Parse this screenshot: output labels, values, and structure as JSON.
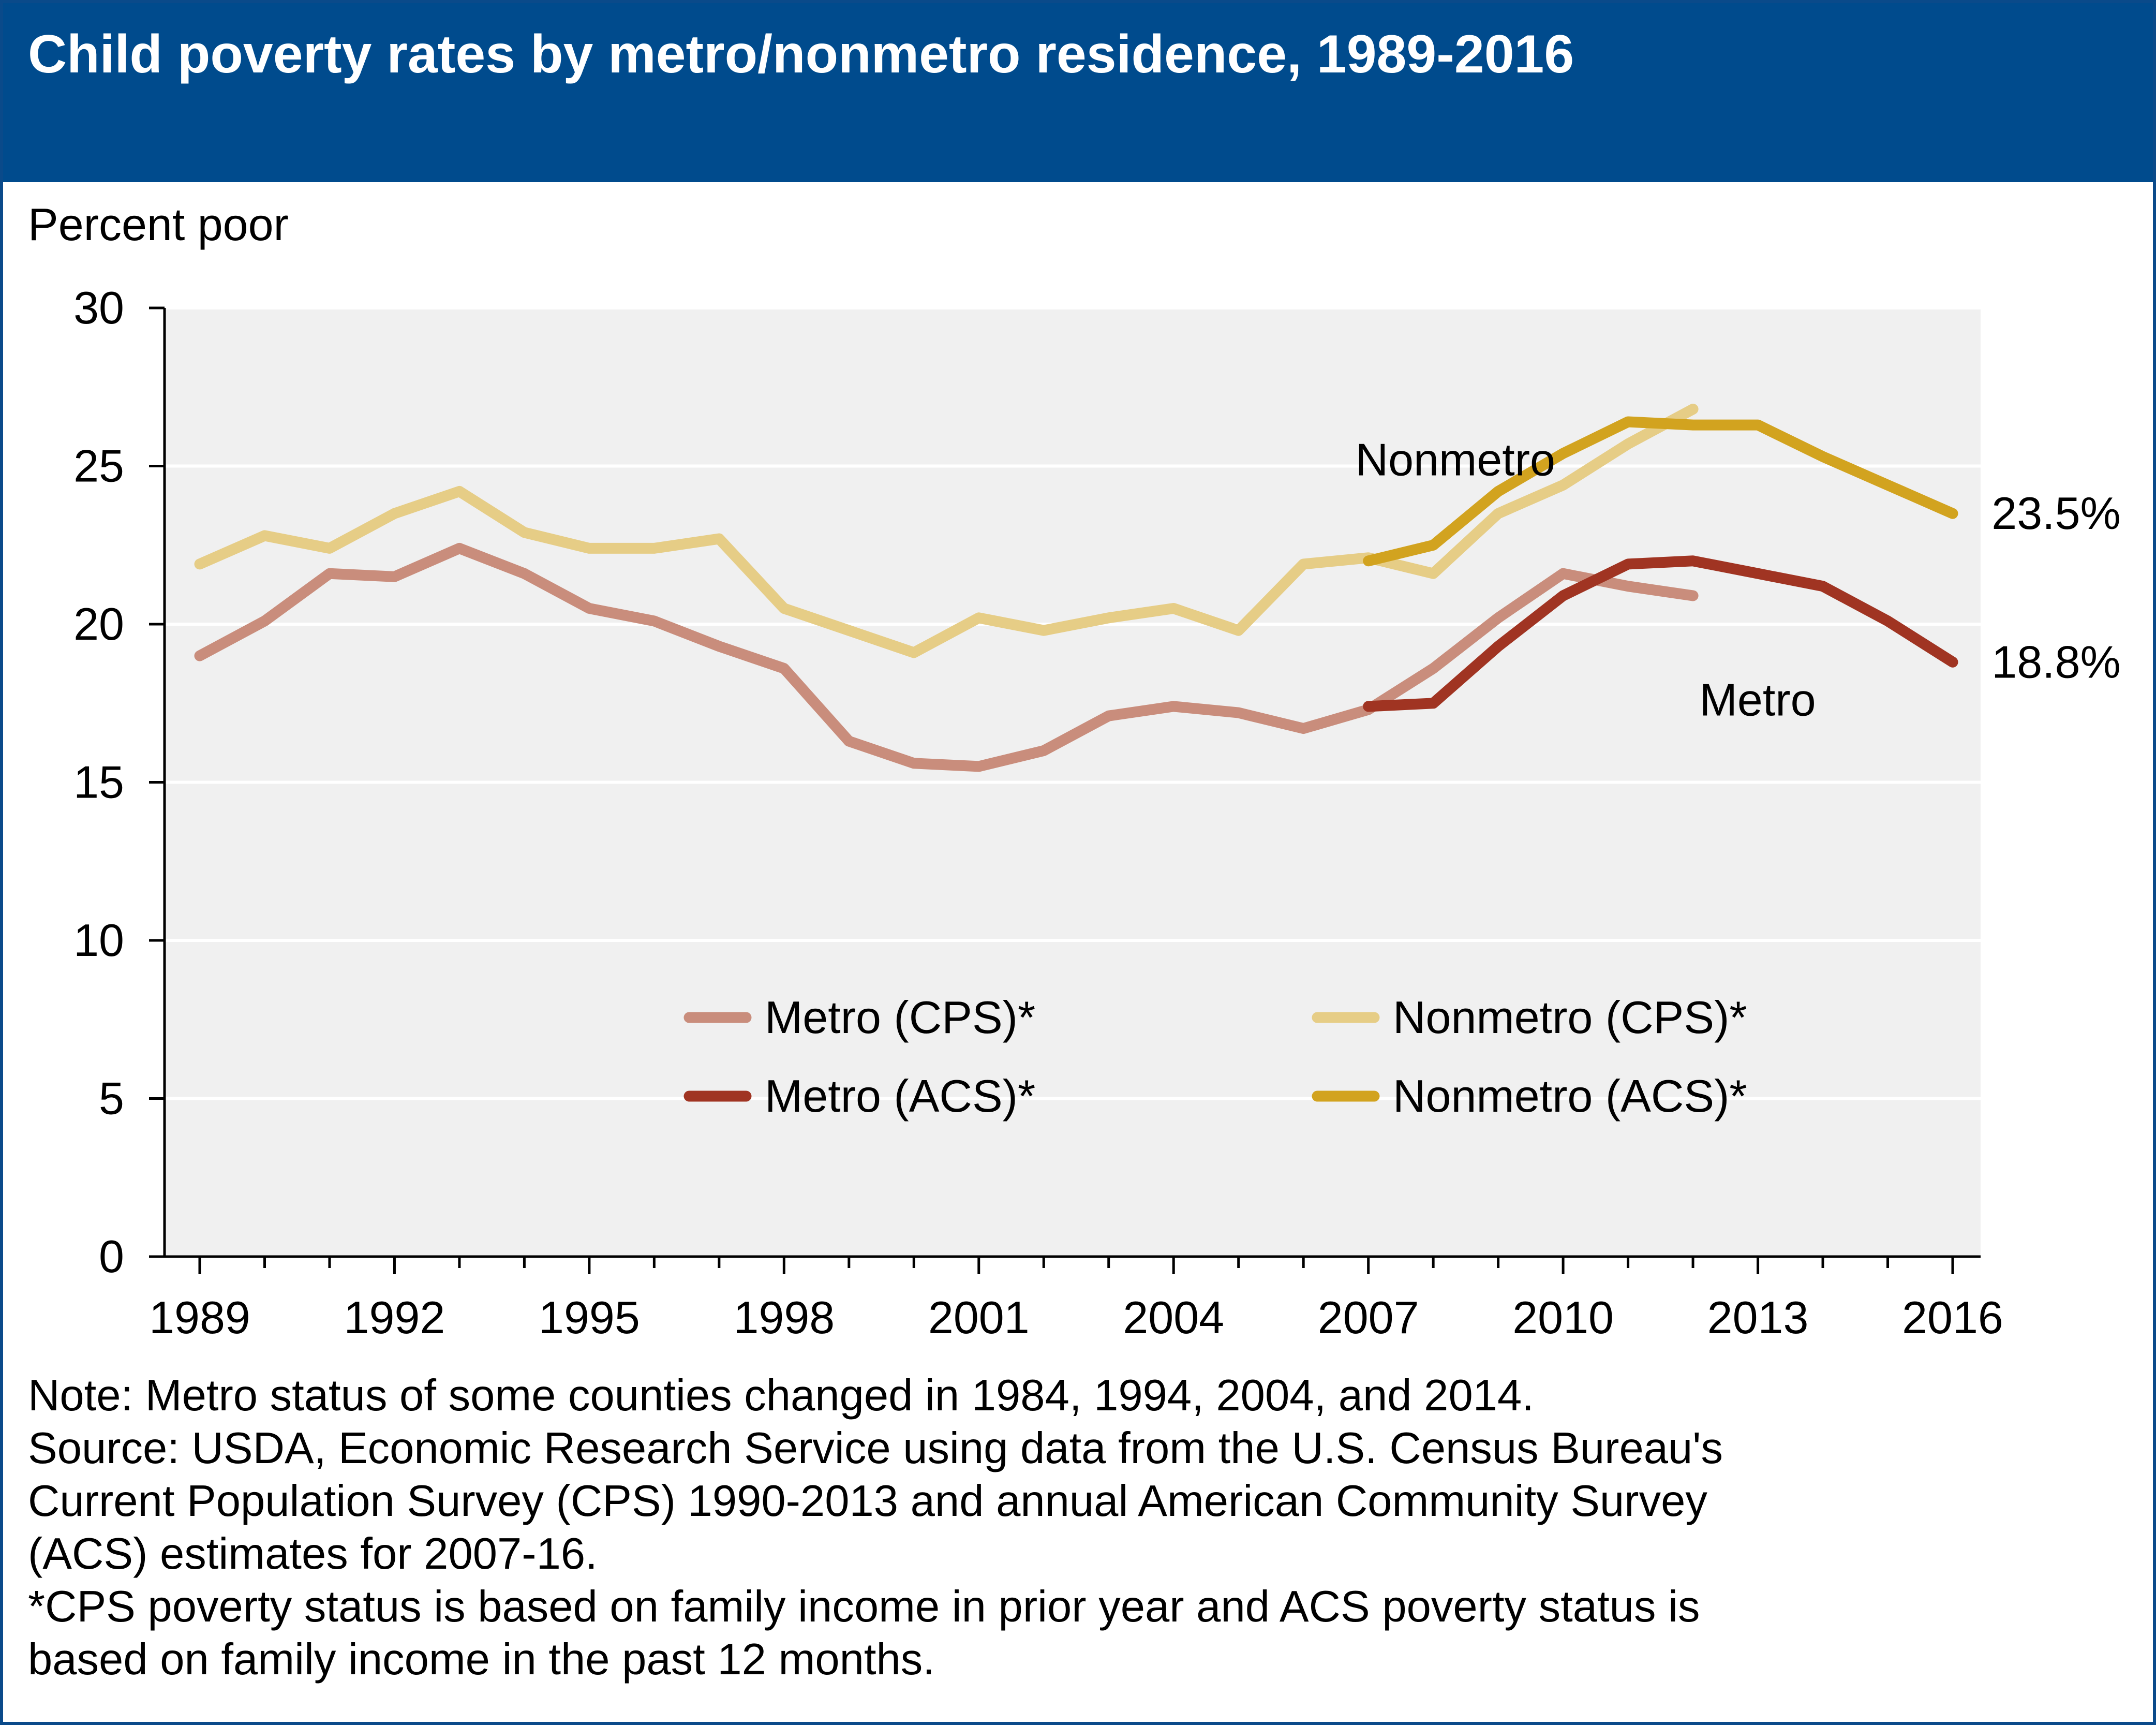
{
  "title": "Child poverty rates by metro/nonmetro residence, 1989-2016",
  "y_axis_label": "Percent poor",
  "notes": {
    "lines": [
      "Note: Metro status of some counties changed in 1984, 1994, 2004, and 2014.",
      "Source: USDA, Economic Research Service using data from the U.S. Census Bureau's",
      "Current Population Survey (CPS) 1990-2013 and annual American Community Survey",
      "(ACS) estimates for 2007-16.",
      "*CPS poverty status is based on family income in prior year and ACS poverty status is",
      "based on family income in the past 12 months."
    ]
  },
  "colors": {
    "header_bg": "#004b8d",
    "plot_bg": "#f0f0f0",
    "gridline": "#ffffff",
    "axis": "#000000"
  },
  "chart_data": {
    "type": "line",
    "ylim": [
      0,
      30
    ],
    "xlim": [
      1989,
      2016
    ],
    "y_ticks": [
      0,
      5,
      10,
      15,
      20,
      25,
      30
    ],
    "x_ticks": [
      1989,
      1992,
      1995,
      1998,
      2001,
      2004,
      2007,
      2010,
      2013,
      2016
    ],
    "grid": "horizontal",
    "legend_position": "bottom-center",
    "series": [
      {
        "name": "Metro (CPS)*",
        "color": "#c98d7c",
        "x": [
          1989,
          1990,
          1991,
          1992,
          1993,
          1994,
          1995,
          1996,
          1997,
          1998,
          1999,
          2000,
          2001,
          2002,
          2003,
          2004,
          2005,
          2006,
          2007,
          2008,
          2009,
          2010,
          2011,
          2012
        ],
        "values": [
          19.0,
          20.1,
          21.6,
          21.5,
          22.4,
          21.6,
          20.5,
          20.1,
          19.3,
          18.6,
          16.3,
          15.6,
          15.5,
          16.0,
          17.1,
          17.4,
          17.2,
          16.7,
          17.3,
          18.6,
          20.2,
          21.6,
          21.2,
          20.9
        ]
      },
      {
        "name": "Nonmetro (CPS)*",
        "color": "#e6cd86",
        "x": [
          1989,
          1990,
          1991,
          1992,
          1993,
          1994,
          1995,
          1996,
          1997,
          1998,
          1999,
          2000,
          2001,
          2002,
          2003,
          2004,
          2005,
          2006,
          2007,
          2008,
          2009,
          2010,
          2011,
          2012
        ],
        "values": [
          21.9,
          22.8,
          22.4,
          23.5,
          24.2,
          22.9,
          22.4,
          22.4,
          22.7,
          20.5,
          19.8,
          19.1,
          20.2,
          19.8,
          20.2,
          20.5,
          19.8,
          21.9,
          22.1,
          21.6,
          23.5,
          24.4,
          25.7,
          26.8
        ]
      },
      {
        "name": "Metro (ACS)*",
        "color": "#a03422",
        "x": [
          2007,
          2008,
          2009,
          2010,
          2011,
          2012,
          2013,
          2014,
          2015,
          2016
        ],
        "values": [
          17.4,
          17.5,
          19.3,
          20.9,
          21.9,
          22.0,
          21.6,
          21.2,
          20.1,
          18.8
        ]
      },
      {
        "name": "Nonmetro (ACS)*",
        "color": "#d2a31f",
        "x": [
          2007,
          2008,
          2009,
          2010,
          2011,
          2012,
          2013,
          2014,
          2015,
          2016
        ],
        "values": [
          22.0,
          22.5,
          24.2,
          25.4,
          26.4,
          26.3,
          26.3,
          25.3,
          24.4,
          23.5
        ]
      }
    ],
    "annotations": [
      {
        "text": "Nonmetro",
        "x": 2006.8,
        "y": 25.2
      },
      {
        "text": "Metro",
        "x": 2012.1,
        "y": 17.6
      },
      {
        "text": "23.5%",
        "x": 2016.6,
        "y": 23.5
      },
      {
        "text": "18.8%",
        "x": 2016.6,
        "y": 18.8
      }
    ]
  }
}
